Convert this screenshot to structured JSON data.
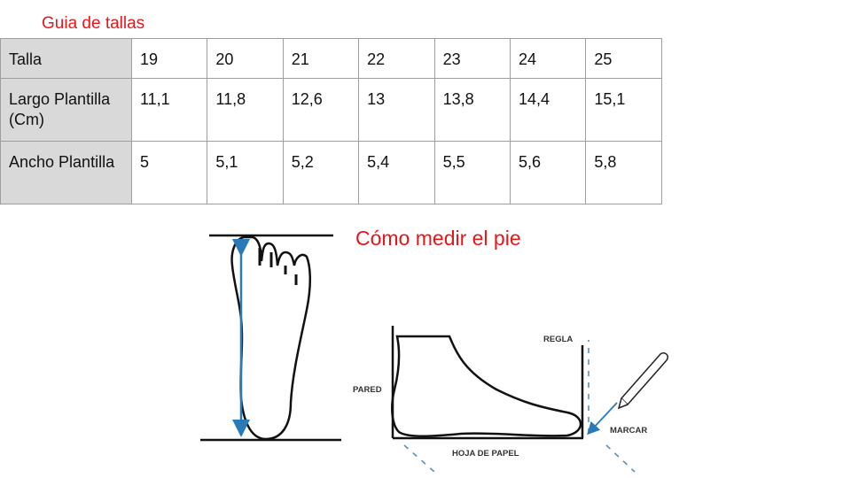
{
  "size_guide": {
    "title": "Guia de tallas",
    "rows": [
      {
        "label": "Talla",
        "values": [
          "19",
          "20",
          "21",
          "22",
          "23",
          "24",
          "25"
        ]
      },
      {
        "label": "Largo Plantilla (Cm)",
        "values": [
          "11,1",
          "11,8",
          "12,6",
          "13",
          "13,8",
          "14,4",
          "15,1"
        ]
      },
      {
        "label": "Ancho Plantilla",
        "values": [
          "5",
          "5,1",
          "5,2",
          "5,4",
          "5,5",
          "5,6",
          "5,8"
        ]
      }
    ]
  },
  "measure": {
    "title": "Cómo medir el pie",
    "labels": {
      "wall": "PARED",
      "ruler": "REGLA",
      "mark": "MARCAR",
      "paper": "HOJA DE PAPEL"
    }
  },
  "colors": {
    "title": "#e8161a",
    "arrow": "#2a7ab8",
    "header_bg": "#d9d9d9"
  }
}
